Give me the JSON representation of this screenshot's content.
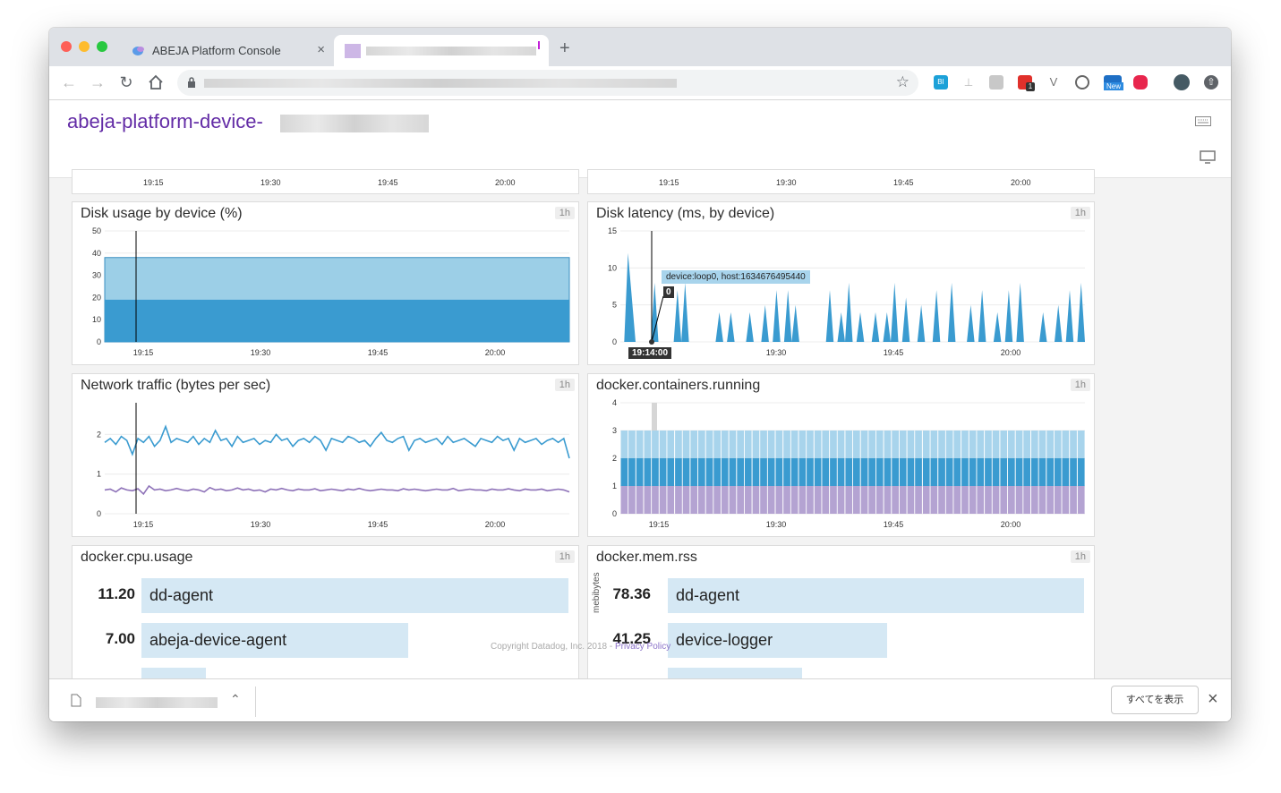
{
  "browser": {
    "tabs": [
      {
        "title": "ABEJA Platform Console"
      },
      {
        "title": ""
      }
    ],
    "new_tab_symbol": "+",
    "close_symbol": "×",
    "extension_new_label": "New",
    "extension_count": "1",
    "extension_bi_label": "BI"
  },
  "page": {
    "title": "abeja-platform-device-"
  },
  "top_strip": {
    "left_ticks": [
      "19:15",
      "19:30",
      "19:45",
      "20:00"
    ],
    "right_ticks": [
      "19:15",
      "19:30",
      "19:45",
      "20:00"
    ]
  },
  "panels": {
    "disk_usage": {
      "title": "Disk usage by device (%)",
      "range": "1h"
    },
    "disk_latency": {
      "title": "Disk latency (ms, by device)",
      "range": "1h",
      "tooltip": "device:loop0, host:1634676495440",
      "tooltip_value": "0",
      "cursor_time": "19:14:00"
    },
    "network": {
      "title": "Network traffic (bytes per sec)",
      "range": "1h"
    },
    "containers": {
      "title": "docker.containers.running",
      "range": "1h"
    },
    "cpu": {
      "title": "docker.cpu.usage",
      "range": "1h"
    },
    "mem": {
      "title": "docker.mem.rss",
      "range": "1h",
      "axis_label": "mebibytes"
    }
  },
  "chart_data": [
    {
      "type": "area",
      "title": "Disk usage by device (%)",
      "x_ticks": [
        "19:15",
        "19:30",
        "19:45",
        "20:00"
      ],
      "y_ticks": [
        "0",
        "10",
        "20",
        "30",
        "40",
        "50"
      ],
      "ylim": [
        0,
        50
      ],
      "series": [
        {
          "values": [
            19,
            19,
            19,
            19,
            19
          ],
          "color": "#3a9bd0"
        },
        {
          "values": [
            38,
            38,
            38,
            38,
            38
          ],
          "color": "#9ccfe7"
        }
      ]
    },
    {
      "type": "area",
      "title": "Disk latency (ms, by device)",
      "x_ticks": [
        "19:15",
        "19:30",
        "19:45",
        "20:00"
      ],
      "y_ticks": [
        "0",
        "5",
        "10",
        "15"
      ],
      "ylim": [
        0,
        15
      ],
      "series": [
        {
          "values": [
            0,
            0,
            12,
            6,
            0,
            0,
            0,
            0,
            0,
            8,
            0,
            0,
            0,
            0,
            0,
            7,
            0,
            8,
            0,
            0,
            0,
            0,
            0,
            0,
            0,
            0,
            4,
            0,
            0,
            4,
            0,
            0,
            0,
            0,
            4,
            0,
            0,
            0,
            5,
            0,
            0,
            7,
            0,
            0,
            7,
            0,
            5,
            0,
            0,
            0,
            0,
            0,
            0,
            0,
            0,
            7,
            0,
            0,
            4,
            0,
            8,
            0,
            0,
            4,
            0,
            0,
            0,
            4,
            0,
            0,
            4,
            0,
            8,
            0,
            0,
            6,
            0,
            0,
            0,
            5,
            0,
            0,
            0,
            7,
            0,
            0,
            0,
            8,
            0,
            0,
            0,
            0,
            5,
            0,
            0,
            7,
            0,
            0,
            0,
            4,
            0,
            0,
            7,
            0,
            0,
            8,
            0,
            0,
            0,
            0,
            0,
            4,
            0,
            0,
            0,
            5,
            0,
            0,
            7,
            0,
            0,
            8,
            0
          ],
          "color": "#3a9bd0"
        }
      ]
    },
    {
      "type": "line",
      "title": "Network traffic (bytes per sec)",
      "x_ticks": [
        "19:15",
        "19:30",
        "19:45",
        "20:00"
      ],
      "y_ticks": [
        "0",
        "1",
        "2"
      ],
      "ylim": [
        0,
        2.8
      ],
      "series": [
        {
          "values": [
            1.8,
            1.9,
            1.75,
            1.95,
            1.85,
            1.5,
            1.9,
            1.8,
            1.95,
            1.7,
            1.85,
            2.2,
            1.8,
            1.9,
            1.85,
            1.8,
            1.95,
            1.75,
            1.9,
            1.8,
            2.1,
            1.85,
            1.9,
            1.7,
            1.95,
            1.8,
            1.85,
            1.9,
            1.75,
            1.85,
            1.8,
            2.0,
            1.85,
            1.9,
            1.7,
            1.85,
            1.9,
            1.8,
            1.95,
            1.85,
            1.6,
            1.9,
            1.85,
            1.8,
            1.95,
            1.9,
            1.8,
            1.85,
            1.7,
            1.9,
            2.05,
            1.85,
            1.8,
            1.9,
            1.95,
            1.6,
            1.85,
            1.9,
            1.8,
            1.85,
            1.9,
            1.75,
            1.95,
            1.8,
            1.85,
            1.9,
            1.8,
            1.7,
            1.9,
            1.85,
            1.8,
            1.95,
            1.85,
            1.9,
            1.6,
            1.9,
            1.8,
            1.85,
            1.9,
            1.75,
            1.85,
            1.9,
            1.8,
            1.9,
            1.4
          ],
          "color": "#3a9bd0"
        },
        {
          "values": [
            0.6,
            0.62,
            0.55,
            0.65,
            0.6,
            0.58,
            0.63,
            0.5,
            0.7,
            0.6,
            0.62,
            0.58,
            0.6,
            0.64,
            0.6,
            0.58,
            0.62,
            0.6,
            0.55,
            0.66,
            0.6,
            0.62,
            0.58,
            0.6,
            0.65,
            0.6,
            0.62,
            0.58,
            0.6,
            0.55,
            0.62,
            0.6,
            0.64,
            0.6,
            0.58,
            0.62,
            0.6,
            0.6,
            0.63,
            0.58,
            0.6,
            0.62,
            0.6,
            0.58,
            0.62,
            0.6,
            0.64,
            0.6,
            0.58,
            0.6,
            0.62,
            0.6,
            0.6,
            0.58,
            0.63,
            0.6,
            0.62,
            0.6,
            0.58,
            0.6,
            0.62,
            0.6,
            0.6,
            0.64,
            0.58,
            0.6,
            0.62,
            0.6,
            0.6,
            0.58,
            0.62,
            0.6,
            0.6,
            0.63,
            0.6,
            0.58,
            0.62,
            0.6,
            0.6,
            0.62,
            0.58,
            0.6,
            0.62,
            0.6,
            0.55
          ],
          "color": "#8e72b8"
        }
      ]
    },
    {
      "type": "bar",
      "title": "docker.containers.running",
      "x_ticks": [
        "19:15",
        "19:30",
        "19:45",
        "20:00"
      ],
      "y_ticks": [
        "0",
        "1",
        "2",
        "3",
        "4"
      ],
      "ylim": [
        0,
        4
      ],
      "stacked": true,
      "bar_count": 60,
      "series": [
        {
          "values": [
            1
          ],
          "color": "#b4a3d2"
        },
        {
          "values": [
            1
          ],
          "color": "#3a9bd0"
        },
        {
          "values": [
            1
          ],
          "color": "#a8d4ec"
        }
      ]
    },
    {
      "type": "bar",
      "title": "docker.cpu.usage",
      "categories": [
        "dd-agent",
        "abeja-device-agent",
        ""
      ],
      "values": [
        11.2,
        7.0,
        1.7
      ],
      "labels": [
        "11.20",
        "7.00",
        ""
      ]
    },
    {
      "type": "bar",
      "title": "docker.mem.rss",
      "categories": [
        "dd-agent",
        "device-logger",
        ""
      ],
      "values": [
        78.36,
        41.25,
        25.3
      ],
      "labels": [
        "78.36",
        "41.25",
        ""
      ]
    }
  ],
  "footer": {
    "copyright": "Copyright Datadog, Inc. 2018 - ",
    "privacy": "Privacy Policy"
  },
  "download_bar": {
    "show_all_label": "すべてを表示",
    "close_symbol": "×"
  }
}
